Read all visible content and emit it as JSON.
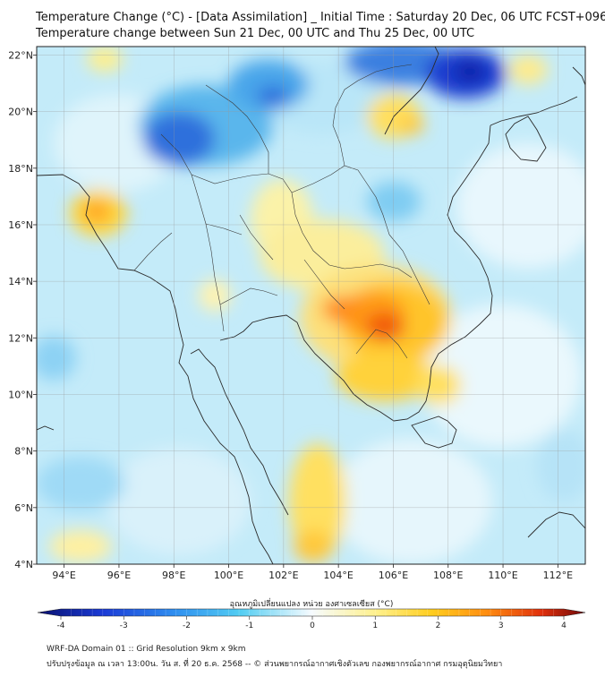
{
  "header": {
    "title_line1": "Temperature Change (°C) - [Data Assimilation] _ Initial Time : Saturday 20 Dec, 06 UTC FCST+096",
    "title_line2": "Temperature change between Sun 21 Dec, 00 UTC and Thu 25 Dec, 00 UTC"
  },
  "map": {
    "lon_ticks": [
      "94°E",
      "96°E",
      "98°E",
      "100°E",
      "102°E",
      "104°E",
      "106°E",
      "108°E",
      "110°E",
      "112°E"
    ],
    "lat_ticks": [
      "22°N",
      "20°N",
      "18°N",
      "16°N",
      "14°N",
      "12°N",
      "10°N",
      "8°N",
      "6°N",
      "4°N"
    ],
    "lon_range": [
      93,
      113
    ],
    "lat_range": [
      4,
      22.3
    ],
    "grid": true,
    "colors": {
      "cold_max": "#1b3bd6",
      "neutral": "#eef7ff",
      "warm_max": "#d62a0a"
    }
  },
  "colorbar": {
    "label": "อุณหภูมิเปลี่ยนแปลง หน่วย องศาเซลเซียส (°C)",
    "ticks": [
      "-4",
      "-3",
      "-2",
      "-1",
      "0",
      "1",
      "2",
      "3",
      "4"
    ],
    "range": [
      -4,
      4
    ]
  },
  "footer": {
    "line1": "WRF-DA Domain 01 :: Grid Resolution 9km x 9km",
    "line2": "ปรับปรุงข้อมูล ณ เวลา 13:00น. วัน ส. ที่ 20 ธ.ค. 2568 -- © ส่วนพยากรณ์อากาศเชิงตัวเลข กองพยากรณ์อากาศ กรมอุตุนิยมวิทยา"
  }
}
